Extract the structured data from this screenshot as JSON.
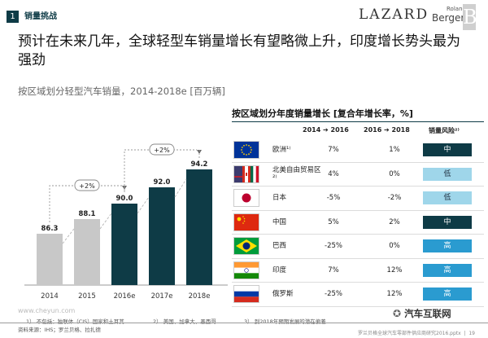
{
  "header": {
    "section_number": "1",
    "section_title": "销量挑战",
    "logo_lazard": "LAZARD",
    "logo_rb_top": "Roland",
    "logo_rb_bottom": "Berger",
    "logo_rb_mark": "B"
  },
  "headline": "预计在未来几年，全球轻型车销量增长有望略微上升，印度增长势头最为强劲",
  "chart_data": {
    "type": "bar",
    "title": "按区域划分轻型汽车销量，2014-2018e [百万辆]",
    "categories": [
      "2014",
      "2015",
      "2016e",
      "2017e",
      "2018e"
    ],
    "values": [
      86.3,
      88.1,
      90.0,
      92.0,
      94.2
    ],
    "value_labels": [
      "86.3",
      "88.1",
      "90.0",
      "92.0",
      "94.2"
    ],
    "bar_colors": [
      "#c8c8c8",
      "#c8c8c8",
      "#0e3b46",
      "#0e3b46",
      "#0e3b46"
    ],
    "annotations": [
      {
        "label": "+2%",
        "from": "2014",
        "to": "2016e"
      },
      {
        "label": "+2%",
        "from": "2016e",
        "to": "2018e"
      }
    ],
    "ylim": [
      80,
      96
    ],
    "grid": false,
    "legend": "none"
  },
  "growth_table": {
    "title": "按区域划分年度销量增长 [复合年增长率，%]",
    "col_headers": [
      "2014 ➔ 2016",
      "2016 ➔ 2018",
      "销量风险²⁾"
    ],
    "rows": [
      {
        "region": "欧洲¹⁾",
        "flag": "eu-flag-icon",
        "g1": "7%",
        "g2": "1%",
        "risk": "中",
        "risk_color": "#0e3b46",
        "risk_text_color": "#ffffff"
      },
      {
        "region": "北美自由贸易区²⁾",
        "flag": "nafta-flags-icon",
        "g1": "4%",
        "g2": "0%",
        "risk": "低",
        "risk_color": "#9fd6ea",
        "risk_text_color": "#234"
      },
      {
        "region": "日本",
        "flag": "japan-flag-icon",
        "g1": "-5%",
        "g2": "-2%",
        "risk": "低",
        "risk_color": "#9fd6ea",
        "risk_text_color": "#234"
      },
      {
        "region": "中国",
        "flag": "china-flag-icon",
        "g1": "5%",
        "g2": "2%",
        "risk": "中",
        "risk_color": "#0e3b46",
        "risk_text_color": "#ffffff"
      },
      {
        "region": "巴西",
        "flag": "brazil-flag-icon",
        "g1": "-25%",
        "g2": "0%",
        "risk": "高",
        "risk_color": "#2a9bd0",
        "risk_text_color": "#ffffff"
      },
      {
        "region": "印度",
        "flag": "india-flag-icon",
        "g1": "7%",
        "g2": "12%",
        "risk": "高",
        "risk_color": "#2a9bd0",
        "risk_text_color": "#ffffff"
      },
      {
        "region": "俄罗斯",
        "flag": "russia-flag-icon",
        "g1": "-25%",
        "g2": "12%",
        "risk": "高",
        "risk_color": "#2a9bd0",
        "risk_text_color": "#ffffff"
      }
    ]
  },
  "footnotes": {
    "n1": "1） 不包括：独联体（CIS）国家和土耳其",
    "n2": "2） 美国、加拿大、墨西哥",
    "n3": "3） 到2018年预期发展的潜在偏差",
    "source": "资料来源：IHS；罗兰贝格、拉扎德",
    "page_ref": "罗兰贝格全球汽车零部件供应商研究2016.pptx",
    "page_number": "19",
    "watermark_url": "www.cheyun.com",
    "watermark_text": "汽车互联网"
  }
}
